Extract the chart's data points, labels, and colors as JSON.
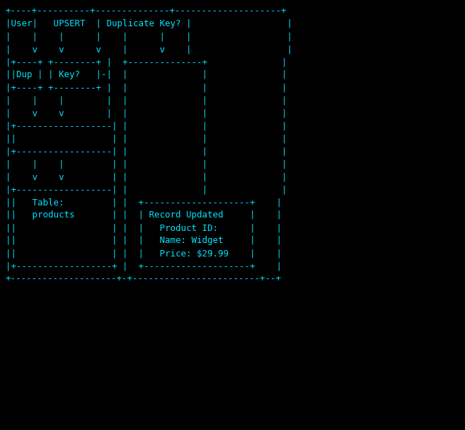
{
  "background_color": "#000000",
  "text_color": "#00e5ff",
  "font_family": "monospace",
  "font_size": 9.0,
  "figsize": [
    6.57,
    6.07
  ],
  "dpi": 100,
  "text": "+----+----------+--------------+--------------------+\n|User|   UPSERT  | Duplicate Key? |                  |\n|    |    |      |    |      |    |                  |\n|    v    v      v    |      v    |                  |\n|+----+ +--------+ |  +--------------+              |\n||Dup | | Key?   |-|  |              |              |\n|+----+ +--------+ |  |              |              |\n|    |    |        |  |              |              |\n|    v    v        |  |              |              |\n|+------------------| |              |              |\n||                  | |              |              |\n|+------------------| |              |              |\n|    |    |         | |              |              |\n|    v    v         | |              |              |\n|+------------------| |              |              |\n||   Table:         | |  +--------------------+    |\n||   products       | |  | Record Updated     |    |\n||                  | |  |   Product ID:      |    |\n||                  | |  |   Name: Widget     |    |\n||                  | |  |   Price: $29.99    |    |\n|+------------------+ |  +--------------------+    |\n+--------------------+-+------------------------+--+"
}
